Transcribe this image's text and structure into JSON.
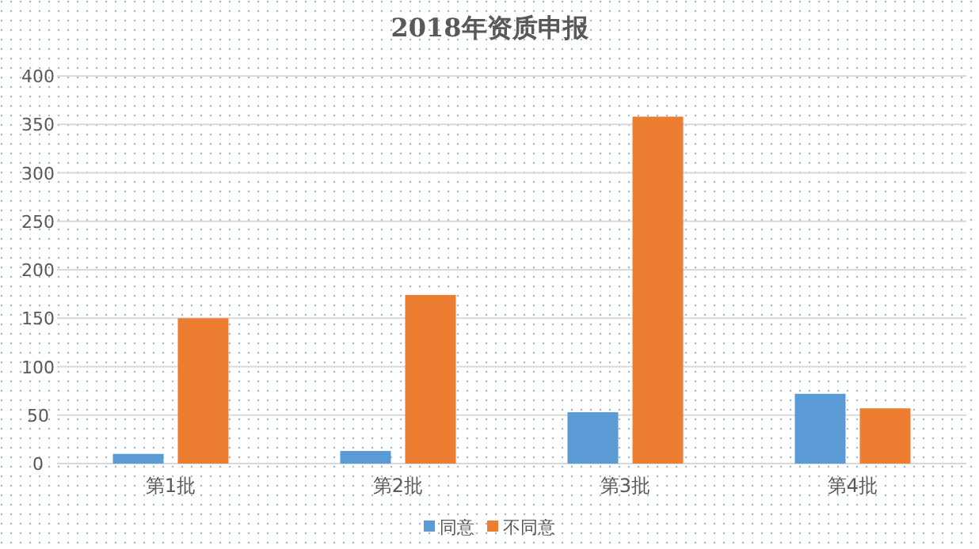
{
  "chart_data": {
    "type": "bar",
    "title": "2018年资质申报",
    "categories": [
      "第1批",
      "第2批",
      "第3批",
      "第4批"
    ],
    "series": [
      {
        "name": "同意",
        "color": "#5b9bd5",
        "values": [
          10,
          13,
          53,
          72
        ]
      },
      {
        "name": "不同意",
        "color": "#ed7d31",
        "values": [
          150,
          174,
          358,
          57
        ]
      }
    ],
    "ylim": [
      0,
      400
    ],
    "yticks": [
      0,
      50,
      100,
      150,
      200,
      250,
      300,
      350,
      400
    ],
    "grid": "y",
    "legend": "bottom"
  }
}
